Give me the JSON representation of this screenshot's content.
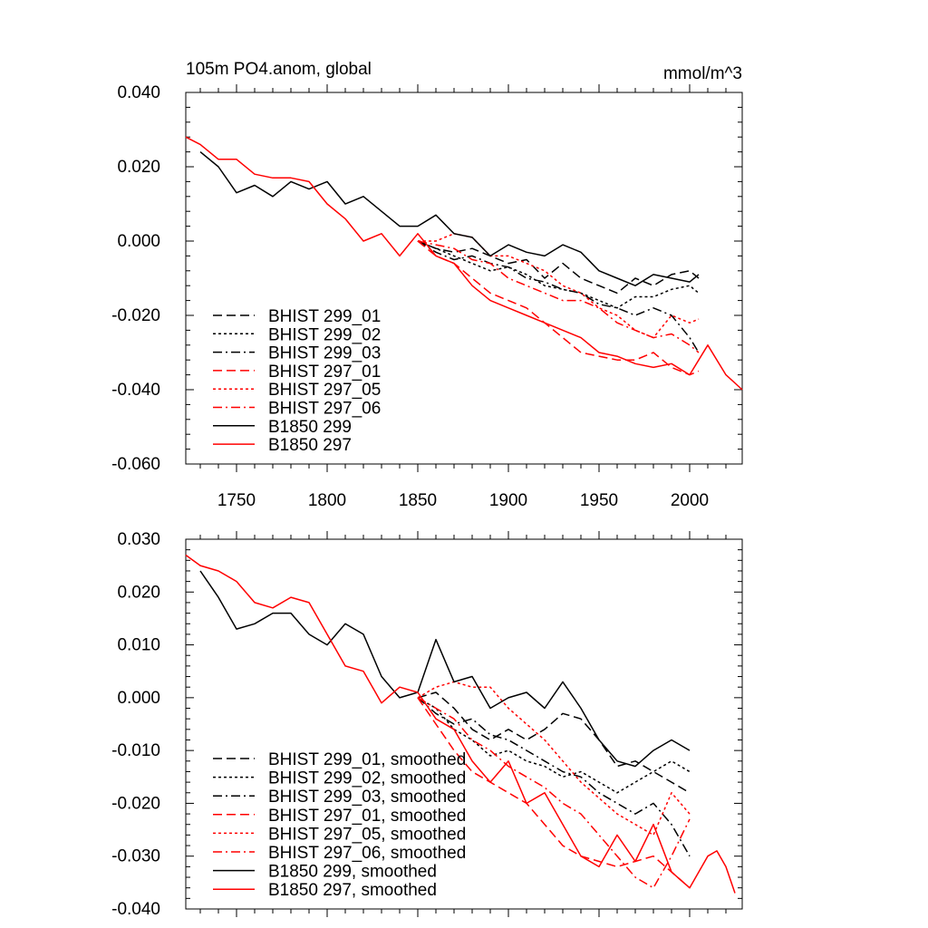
{
  "chart_data": [
    {
      "type": "line",
      "title": "105m PO4.anom, global",
      "units": "mmol/m^3",
      "xlim": [
        1722,
        2029
      ],
      "ylim": [
        -0.06,
        0.04
      ],
      "x_ticks": [
        "1750",
        "1800",
        "1850",
        "1900",
        "1950",
        "2000"
      ],
      "y_ticks": [
        "0.040",
        "0.020",
        "0.000",
        "-0.020",
        "-0.040",
        "-0.060"
      ],
      "grid": false,
      "legend_position": "bottom-left",
      "series": [
        {
          "name": "BHIST 299_01",
          "color": "#000000",
          "dash": "dash",
          "x": [
            1850,
            1860,
            1870,
            1880,
            1890,
            1900,
            1910,
            1920,
            1930,
            1940,
            1950,
            1960,
            1970,
            1980,
            1990,
            2000,
            2005
          ],
          "y": [
            0.0,
            -0.002,
            -0.003,
            -0.002,
            -0.004,
            -0.006,
            -0.005,
            -0.01,
            -0.006,
            -0.01,
            -0.012,
            -0.014,
            -0.01,
            -0.012,
            -0.009,
            -0.008,
            -0.01
          ]
        },
        {
          "name": "BHIST 299_02",
          "color": "#000000",
          "dash": "dot",
          "x": [
            1850,
            1860,
            1870,
            1880,
            1890,
            1900,
            1910,
            1920,
            1930,
            1940,
            1950,
            1960,
            1970,
            1980,
            1990,
            2000,
            2005
          ],
          "y": [
            0.0,
            -0.002,
            -0.004,
            -0.006,
            -0.008,
            -0.007,
            -0.009,
            -0.012,
            -0.013,
            -0.014,
            -0.016,
            -0.018,
            -0.015,
            -0.015,
            -0.013,
            -0.012,
            -0.014
          ]
        },
        {
          "name": "BHIST 299_03",
          "color": "#000000",
          "dash": "dashdot",
          "x": [
            1850,
            1860,
            1870,
            1880,
            1890,
            1900,
            1910,
            1920,
            1930,
            1940,
            1950,
            1960,
            1970,
            1980,
            1990,
            2000,
            2005
          ],
          "y": [
            0.0,
            -0.003,
            -0.005,
            -0.004,
            -0.006,
            -0.007,
            -0.01,
            -0.011,
            -0.013,
            -0.014,
            -0.017,
            -0.018,
            -0.02,
            -0.018,
            -0.02,
            -0.026,
            -0.03
          ]
        },
        {
          "name": "BHIST 297_01",
          "color": "#ff0000",
          "dash": "dash",
          "x": [
            1850,
            1860,
            1870,
            1880,
            1890,
            1900,
            1910,
            1920,
            1930,
            1940,
            1950,
            1960,
            1970,
            1980,
            1990,
            2000,
            2005
          ],
          "y": [
            0.0,
            -0.004,
            -0.006,
            -0.01,
            -0.014,
            -0.016,
            -0.018,
            -0.022,
            -0.026,
            -0.03,
            -0.031,
            -0.032,
            -0.032,
            -0.03,
            -0.034,
            -0.036,
            -0.035
          ]
        },
        {
          "name": "BHIST 297_05",
          "color": "#ff0000",
          "dash": "dot",
          "x": [
            1850,
            1860,
            1870,
            1880,
            1890,
            1900,
            1910,
            1920,
            1930,
            1940,
            1950,
            1960,
            1970,
            1980,
            1990,
            2000,
            2005
          ],
          "y": [
            0.0,
            0.0,
            0.002,
            0.001,
            -0.004,
            -0.004,
            -0.006,
            -0.008,
            -0.012,
            -0.014,
            -0.018,
            -0.02,
            -0.024,
            -0.026,
            -0.02,
            -0.022,
            -0.021
          ]
        },
        {
          "name": "BHIST 297_06",
          "color": "#ff0000",
          "dash": "dashdot",
          "x": [
            1850,
            1860,
            1870,
            1880,
            1890,
            1900,
            1910,
            1920,
            1930,
            1940,
            1950,
            1960,
            1970,
            1980,
            1990,
            2000,
            2005
          ],
          "y": [
            0.0,
            -0.001,
            -0.002,
            -0.005,
            -0.006,
            -0.01,
            -0.012,
            -0.014,
            -0.016,
            -0.016,
            -0.018,
            -0.022,
            -0.024,
            -0.026,
            -0.025,
            -0.028,
            -0.03
          ]
        },
        {
          "name": "B1850 299",
          "color": "#000000",
          "dash": "solid",
          "x": [
            1730,
            1740,
            1750,
            1760,
            1770,
            1780,
            1790,
            1800,
            1810,
            1820,
            1830,
            1840,
            1850,
            1860,
            1870,
            1880,
            1890,
            1900,
            1910,
            1920,
            1930,
            1940,
            1950,
            1960,
            1970,
            1980,
            1990,
            2000,
            2005
          ],
          "y": [
            0.024,
            0.02,
            0.013,
            0.015,
            0.012,
            0.016,
            0.014,
            0.016,
            0.01,
            0.012,
            0.008,
            0.004,
            0.004,
            0.007,
            0.002,
            0.001,
            -0.004,
            -0.001,
            -0.003,
            -0.004,
            -0.001,
            -0.003,
            -0.008,
            -0.01,
            -0.012,
            -0.009,
            -0.01,
            -0.011,
            -0.009
          ]
        },
        {
          "name": "B1850 297",
          "color": "#ff0000",
          "dash": "solid",
          "x": [
            1722,
            1730,
            1740,
            1750,
            1760,
            1770,
            1780,
            1790,
            1800,
            1810,
            1820,
            1830,
            1840,
            1850,
            1860,
            1870,
            1880,
            1890,
            1900,
            1910,
            1920,
            1930,
            1940,
            1950,
            1960,
            1970,
            1980,
            1990,
            2000,
            2010,
            2020,
            2029
          ],
          "y": [
            0.028,
            0.026,
            0.022,
            0.022,
            0.018,
            0.017,
            0.017,
            0.016,
            0.01,
            0.006,
            0.0,
            0.002,
            -0.004,
            0.002,
            -0.004,
            -0.006,
            -0.012,
            -0.016,
            -0.018,
            -0.02,
            -0.022,
            -0.024,
            -0.026,
            -0.03,
            -0.031,
            -0.033,
            -0.034,
            -0.033,
            -0.036,
            -0.028,
            -0.036,
            -0.04
          ]
        }
      ]
    },
    {
      "type": "line",
      "xlim": [
        1722,
        2029
      ],
      "ylim": [
        -0.04,
        0.03
      ],
      "y_ticks": [
        "0.030",
        "0.020",
        "0.010",
        "0.000",
        "-0.010",
        "-0.020",
        "-0.030",
        "-0.040"
      ],
      "grid": false,
      "legend_position": "bottom-left",
      "series": [
        {
          "name": "BHIST 299_01, smoothed",
          "color": "#000000",
          "dash": "dash",
          "x": [
            1850,
            1860,
            1870,
            1880,
            1890,
            1900,
            1910,
            1920,
            1930,
            1940,
            1950,
            1960,
            1970,
            1980,
            1990,
            2000
          ],
          "y": [
            0.0,
            0.001,
            -0.002,
            -0.006,
            -0.008,
            -0.006,
            -0.008,
            -0.006,
            -0.003,
            -0.004,
            -0.008,
            -0.013,
            -0.012,
            -0.014,
            -0.016,
            -0.018
          ]
        },
        {
          "name": "BHIST 299_02, smoothed",
          "color": "#000000",
          "dash": "dot",
          "x": [
            1850,
            1860,
            1870,
            1880,
            1890,
            1900,
            1910,
            1920,
            1930,
            1940,
            1950,
            1960,
            1970,
            1980,
            1990,
            2000
          ],
          "y": [
            0.0,
            -0.002,
            -0.006,
            -0.008,
            -0.011,
            -0.01,
            -0.012,
            -0.013,
            -0.015,
            -0.014,
            -0.016,
            -0.018,
            -0.016,
            -0.014,
            -0.012,
            -0.014
          ]
        },
        {
          "name": "BHIST 299_03, smoothed",
          "color": "#000000",
          "dash": "dashdot",
          "x": [
            1850,
            1860,
            1870,
            1880,
            1890,
            1900,
            1910,
            1920,
            1930,
            1940,
            1950,
            1960,
            1970,
            1980,
            1990,
            2000
          ],
          "y": [
            0.0,
            -0.003,
            -0.005,
            -0.004,
            -0.007,
            -0.008,
            -0.01,
            -0.012,
            -0.014,
            -0.015,
            -0.018,
            -0.02,
            -0.022,
            -0.02,
            -0.024,
            -0.03
          ]
        },
        {
          "name": "BHIST 297_01, smoothed",
          "color": "#ff0000",
          "dash": "dash",
          "x": [
            1850,
            1860,
            1870,
            1880,
            1890,
            1900,
            1910,
            1920,
            1930,
            1940,
            1950,
            1960,
            1970,
            1980,
            1990,
            2000
          ],
          "y": [
            0.0,
            -0.005,
            -0.01,
            -0.014,
            -0.016,
            -0.018,
            -0.02,
            -0.024,
            -0.028,
            -0.03,
            -0.031,
            -0.032,
            -0.031,
            -0.03,
            -0.033,
            -0.036
          ]
        },
        {
          "name": "BHIST 297_05, smoothed",
          "color": "#ff0000",
          "dash": "dot",
          "x": [
            1850,
            1860,
            1870,
            1880,
            1890,
            1900,
            1910,
            1920,
            1930,
            1940,
            1950,
            1960,
            1970,
            1980,
            1990,
            2000
          ],
          "y": [
            0.0,
            0.002,
            0.003,
            0.002,
            0.002,
            -0.002,
            -0.005,
            -0.008,
            -0.012,
            -0.016,
            -0.019,
            -0.022,
            -0.024,
            -0.026,
            -0.018,
            -0.022
          ]
        },
        {
          "name": "BHIST 297_06, smoothed",
          "color": "#ff0000",
          "dash": "dashdot",
          "x": [
            1850,
            1860,
            1870,
            1880,
            1890,
            1900,
            1910,
            1920,
            1930,
            1940,
            1950,
            1960,
            1970,
            1980,
            1990,
            2000
          ],
          "y": [
            0.0,
            -0.002,
            -0.004,
            -0.008,
            -0.01,
            -0.013,
            -0.015,
            -0.017,
            -0.02,
            -0.022,
            -0.026,
            -0.03,
            -0.034,
            -0.036,
            -0.03,
            -0.023
          ]
        },
        {
          "name": "B1850 299, smoothed",
          "color": "#000000",
          "dash": "solid",
          "x": [
            1730,
            1740,
            1750,
            1760,
            1770,
            1780,
            1790,
            1800,
            1810,
            1820,
            1830,
            1840,
            1850,
            1860,
            1870,
            1880,
            1890,
            1900,
            1910,
            1920,
            1930,
            1940,
            1950,
            1960,
            1970,
            1980,
            1990,
            2000
          ],
          "y": [
            0.024,
            0.019,
            0.013,
            0.014,
            0.016,
            0.016,
            0.012,
            0.01,
            0.014,
            0.012,
            0.004,
            0.0,
            0.001,
            0.011,
            0.003,
            0.004,
            -0.002,
            0.0,
            0.001,
            -0.002,
            0.003,
            -0.002,
            -0.008,
            -0.012,
            -0.013,
            -0.01,
            -0.008,
            -0.01
          ]
        },
        {
          "name": "B1850 297, smoothed",
          "color": "#ff0000",
          "dash": "solid",
          "x": [
            1722,
            1730,
            1740,
            1750,
            1760,
            1770,
            1780,
            1790,
            1800,
            1810,
            1820,
            1830,
            1840,
            1850,
            1860,
            1870,
            1880,
            1890,
            1900,
            1910,
            1920,
            1930,
            1940,
            1950,
            1960,
            1970,
            1980,
            1990,
            2000,
            2010,
            2015,
            2020,
            2025
          ],
          "y": [
            0.027,
            0.025,
            0.024,
            0.022,
            0.018,
            0.017,
            0.019,
            0.018,
            0.012,
            0.006,
            0.005,
            -0.001,
            0.002,
            0.001,
            -0.004,
            -0.006,
            -0.012,
            -0.016,
            -0.012,
            -0.02,
            -0.018,
            -0.024,
            -0.03,
            -0.032,
            -0.026,
            -0.031,
            -0.024,
            -0.033,
            -0.036,
            -0.03,
            -0.029,
            -0.032,
            -0.037
          ]
        }
      ]
    }
  ]
}
